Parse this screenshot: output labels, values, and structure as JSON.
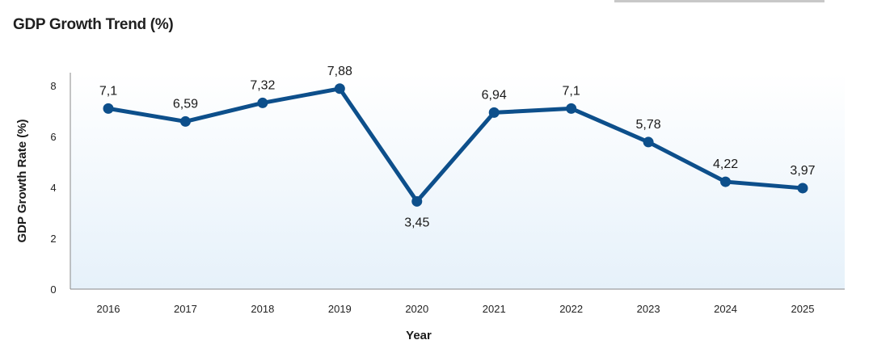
{
  "chart_data": {
    "type": "line",
    "title": "GDP Growth Trend (%)",
    "xlabel": "Year",
    "ylabel": "GDP Growth Rate (%)",
    "categories": [
      "2016",
      "2017",
      "2018",
      "2019",
      "2020",
      "2021",
      "2022",
      "2023",
      "2024",
      "2025"
    ],
    "series": [
      {
        "values": [
          7.1,
          6.59,
          7.32,
          7.88,
          3.45,
          6.94,
          7.1,
          5.78,
          4.22,
          3.97
        ],
        "labels": [
          "7,1",
          "6,59",
          "7,32",
          "7,88",
          "3,45",
          "6,94",
          "7,1",
          "5,78",
          "4,22",
          "3,97"
        ],
        "color": "#0d4f8b"
      }
    ],
    "yticks": [
      "0",
      "2",
      "4",
      "6",
      "8"
    ],
    "ylim": [
      0,
      8
    ],
    "grid": false,
    "legend": "none",
    "colors": {
      "plot_bg_top": "#ffffff",
      "plot_bg_bottom": "#e8f2fa",
      "axis": "#888888"
    }
  }
}
